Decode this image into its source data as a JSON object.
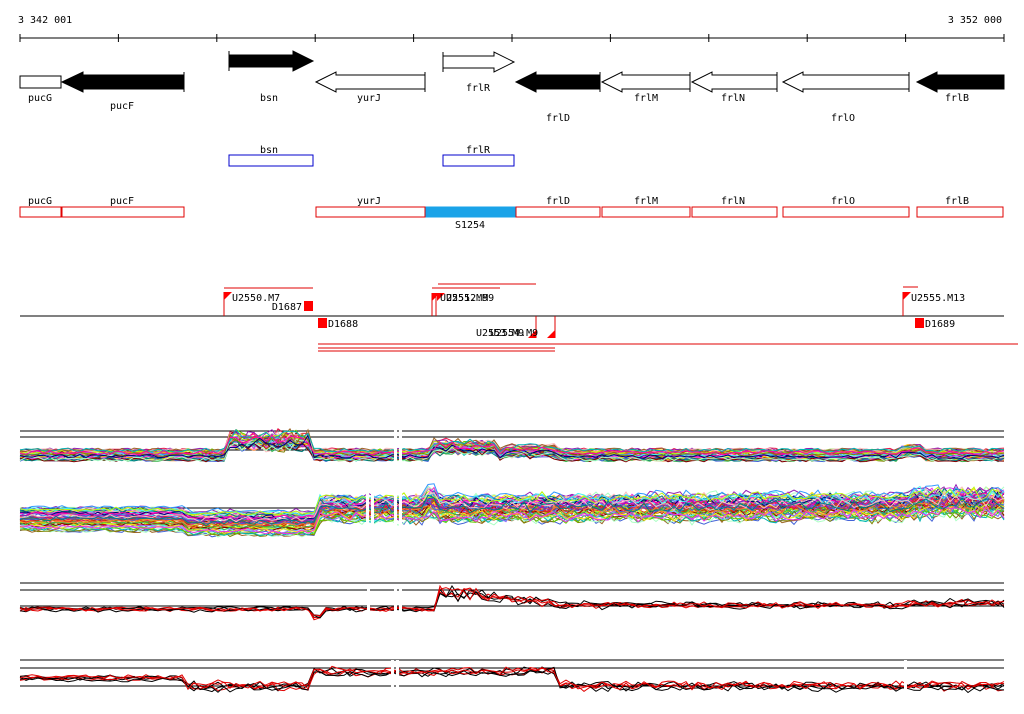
{
  "ruler": {
    "start_label": "3 342 001",
    "end_label": "3 352 000",
    "start": 3342001,
    "end": 3352000
  },
  "colors": {
    "annotation_outline": "#e00000",
    "sigma_outline": "#0000cc",
    "segment_fill": "#1aa3e8",
    "marker": "#ff0000",
    "black": "#000000"
  },
  "genes": [
    {
      "name": "pucG",
      "strand": "-",
      "filled": false
    },
    {
      "name": "pucF",
      "strand": "-",
      "filled": true
    },
    {
      "name": "bsn",
      "strand": "+",
      "filled": true
    },
    {
      "name": "yurJ",
      "strand": "-",
      "filled": false
    },
    {
      "name": "frlR",
      "strand": "+",
      "filled": false
    },
    {
      "name": "frlD",
      "strand": "-",
      "filled": true
    },
    {
      "name": "frlM",
      "strand": "-",
      "filled": false
    },
    {
      "name": "frlN",
      "strand": "-",
      "filled": false
    },
    {
      "name": "frlO",
      "strand": "-",
      "filled": false
    },
    {
      "name": "frlB",
      "strand": "-",
      "filled": true
    }
  ],
  "sigma_boxes": [
    {
      "name": "bsn"
    },
    {
      "name": "frlR"
    }
  ],
  "annotation_boxes": [
    {
      "name": "pucG"
    },
    {
      "name": "pucF"
    },
    {
      "name": "yurJ"
    },
    {
      "name": "frlD"
    },
    {
      "name": "frlM"
    },
    {
      "name": "frlN"
    },
    {
      "name": "frlO"
    },
    {
      "name": "frlB"
    }
  ],
  "segment_label": "S1254",
  "transcription_units": [
    {
      "name": "U2550.M7"
    },
    {
      "name": "D1687"
    },
    {
      "name": "D1688"
    },
    {
      "name": "U2551.M9"
    },
    {
      "name": "U2552.M9"
    },
    {
      "name": "U2553.M9"
    },
    {
      "name": "U2554.M9"
    },
    {
      "name": "U2555.M13"
    },
    {
      "name": "D1689"
    }
  ],
  "overlapping_labels": {
    "upper": "U2551.M9",
    "lower": "U2553.M9"
  }
}
